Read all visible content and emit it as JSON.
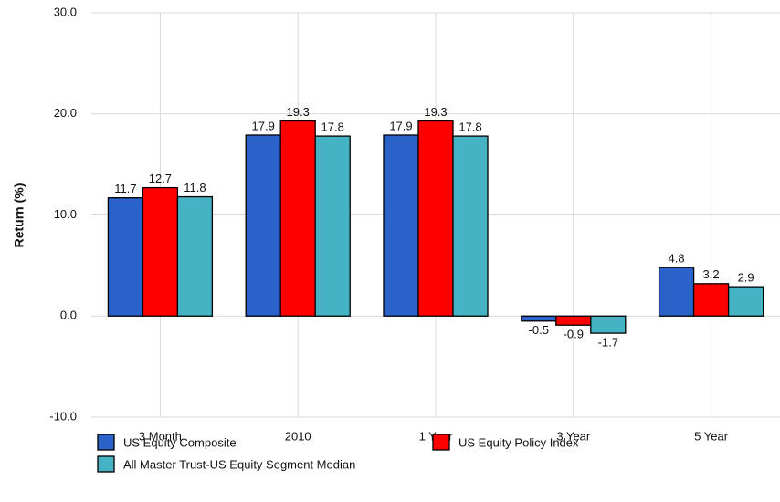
{
  "chart_data": {
    "type": "bar",
    "y_label": "Return (%)",
    "categories": [
      "3 Month",
      "2010",
      "1 Year",
      "3 Year",
      "5 Year"
    ],
    "series": [
      {
        "name": "US Equity Composite",
        "color": "#2a62c9",
        "values": [
          11.7,
          17.9,
          17.9,
          -0.5,
          4.8
        ]
      },
      {
        "name": "US Equity Policy Index",
        "color": "#ff0000",
        "values": [
          12.7,
          19.3,
          19.3,
          -0.9,
          3.2
        ]
      },
      {
        "name": "All Master Trust-US Equity Segment Median",
        "color": "#46b3c4",
        "values": [
          11.8,
          17.8,
          17.8,
          -1.7,
          2.9
        ]
      }
    ],
    "ylim": [
      -10,
      30
    ],
    "yticks": [
      {
        "value": -10,
        "label": "-10.0"
      },
      {
        "value": 0,
        "label": "0.0"
      },
      {
        "value": 10,
        "label": "10.0"
      },
      {
        "value": 20,
        "label": "20.0"
      },
      {
        "value": 30,
        "label": "30.0"
      }
    ],
    "grid": true
  }
}
